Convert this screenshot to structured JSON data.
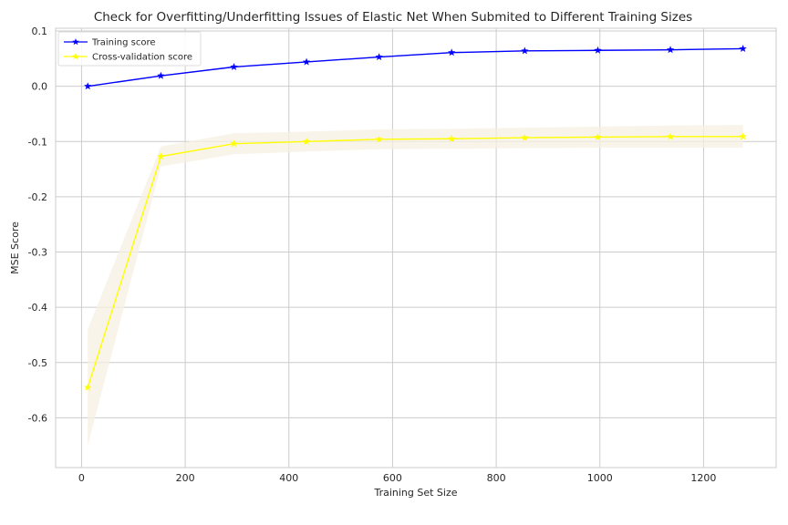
{
  "chart_data": {
    "type": "line",
    "title": "Check for Overfitting/Underfitting Issues of Elastic Net When Submited to Different Training Sizes",
    "xlabel": "Training Set Size",
    "ylabel": "MSE Score",
    "xlim": [
      -50,
      1340
    ],
    "ylim": [
      -0.69,
      0.105
    ],
    "x_ticks": [
      0,
      200,
      400,
      600,
      800,
      1000,
      1200
    ],
    "y_ticks": [
      0.1,
      0.0,
      -0.1,
      -0.2,
      -0.3,
      -0.4,
      -0.5,
      -0.6
    ],
    "y_tick_labels": [
      "0.1",
      "0.0",
      "-0.1",
      "-0.2",
      "-0.3",
      "-0.4",
      "-0.5",
      "-0.6"
    ],
    "grid": true,
    "legend_position": "top-left",
    "x": [
      12,
      153,
      294,
      434,
      574,
      714,
      855,
      996,
      1136,
      1276
    ],
    "series": [
      {
        "name": "Training score",
        "color": "#0000ff",
        "marker": "star",
        "values": [
          0.0,
          0.019,
          0.035,
          0.044,
          0.053,
          0.061,
          0.064,
          0.065,
          0.066,
          0.068
        ],
        "band_low": [
          0.0,
          0.018,
          0.034,
          0.043,
          0.052,
          0.06,
          0.063,
          0.064,
          0.065,
          0.067
        ],
        "band_high": [
          0.0,
          0.02,
          0.036,
          0.045,
          0.054,
          0.062,
          0.065,
          0.066,
          0.067,
          0.069
        ]
      },
      {
        "name": "Cross-validation score",
        "color": "#ffff00",
        "marker": "star",
        "band_color": "#f5f0e1",
        "values": [
          -0.545,
          -0.127,
          -0.104,
          -0.1,
          -0.096,
          -0.095,
          -0.093,
          -0.092,
          -0.091,
          -0.091
        ],
        "band_low": [
          -0.65,
          -0.145,
          -0.123,
          -0.118,
          -0.114,
          -0.113,
          -0.112,
          -0.111,
          -0.111,
          -0.111
        ],
        "band_high": [
          -0.44,
          -0.109,
          -0.085,
          -0.082,
          -0.078,
          -0.077,
          -0.075,
          -0.073,
          -0.071,
          -0.07
        ]
      }
    ]
  }
}
